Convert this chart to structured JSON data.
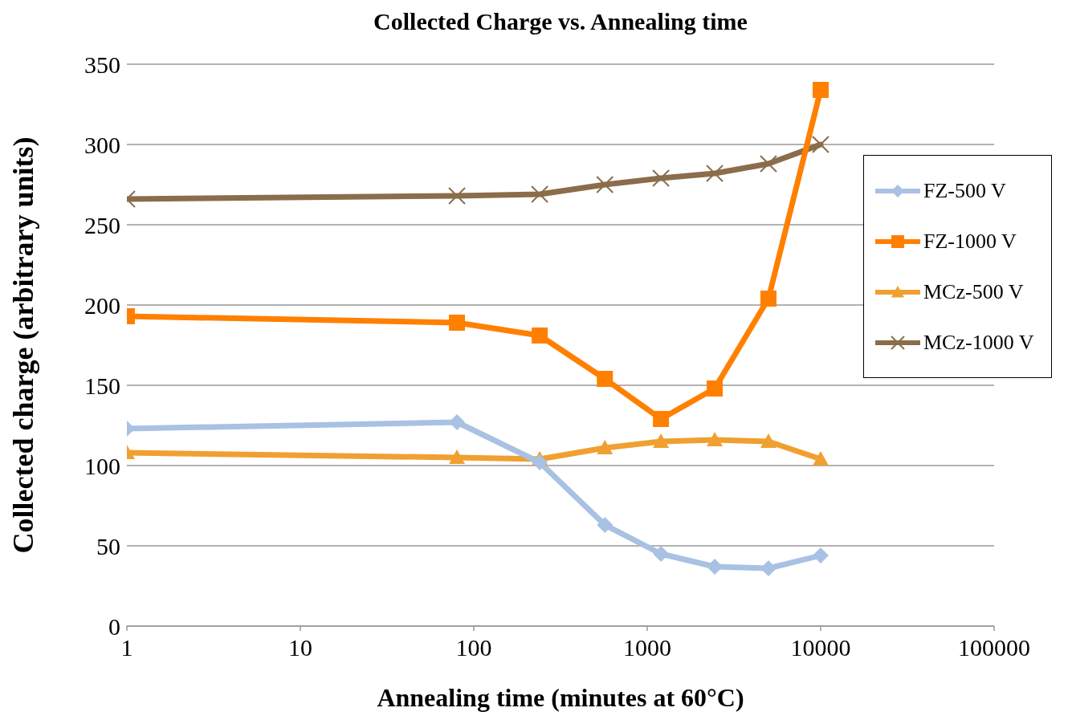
{
  "chart_data": {
    "type": "line",
    "title": "Collected Charge vs. Annealing time",
    "xlabel": "Annealing time (minutes at 60°C)",
    "ylabel": "Collected charge (arbitrary units)",
    "x": [
      1,
      80,
      240,
      570,
      1200,
      2450,
      5000,
      10000
    ],
    "series": [
      {
        "name": "FZ-500 V",
        "color": "#a9c1e3",
        "marker": "diamond",
        "values": [
          123,
          127,
          102,
          63,
          45,
          37,
          36,
          44
        ]
      },
      {
        "name": "FZ-1000 V",
        "color": "#ff8000",
        "marker": "square",
        "values": [
          193,
          189,
          181,
          154,
          129,
          148,
          204,
          334
        ]
      },
      {
        "name": "MCz-500 V",
        "color": "#f0a030",
        "marker": "triangle",
        "values": [
          108,
          105,
          104,
          111,
          115,
          116,
          115,
          104
        ]
      },
      {
        "name": "MCz-1000 V",
        "color": "#8b6d4b",
        "marker": "cross",
        "values": [
          266,
          268,
          269,
          275,
          279,
          282,
          288,
          300
        ]
      }
    ],
    "log": "x",
    "xlim": [
      1,
      100000
    ],
    "xticks": [
      1,
      10,
      100,
      1000,
      10000,
      100000
    ],
    "ylim": [
      0,
      350
    ],
    "yticks": [
      0,
      50,
      100,
      150,
      200,
      250,
      300,
      350
    ],
    "grid": "y",
    "legend": "right",
    "line_style": "solid"
  }
}
